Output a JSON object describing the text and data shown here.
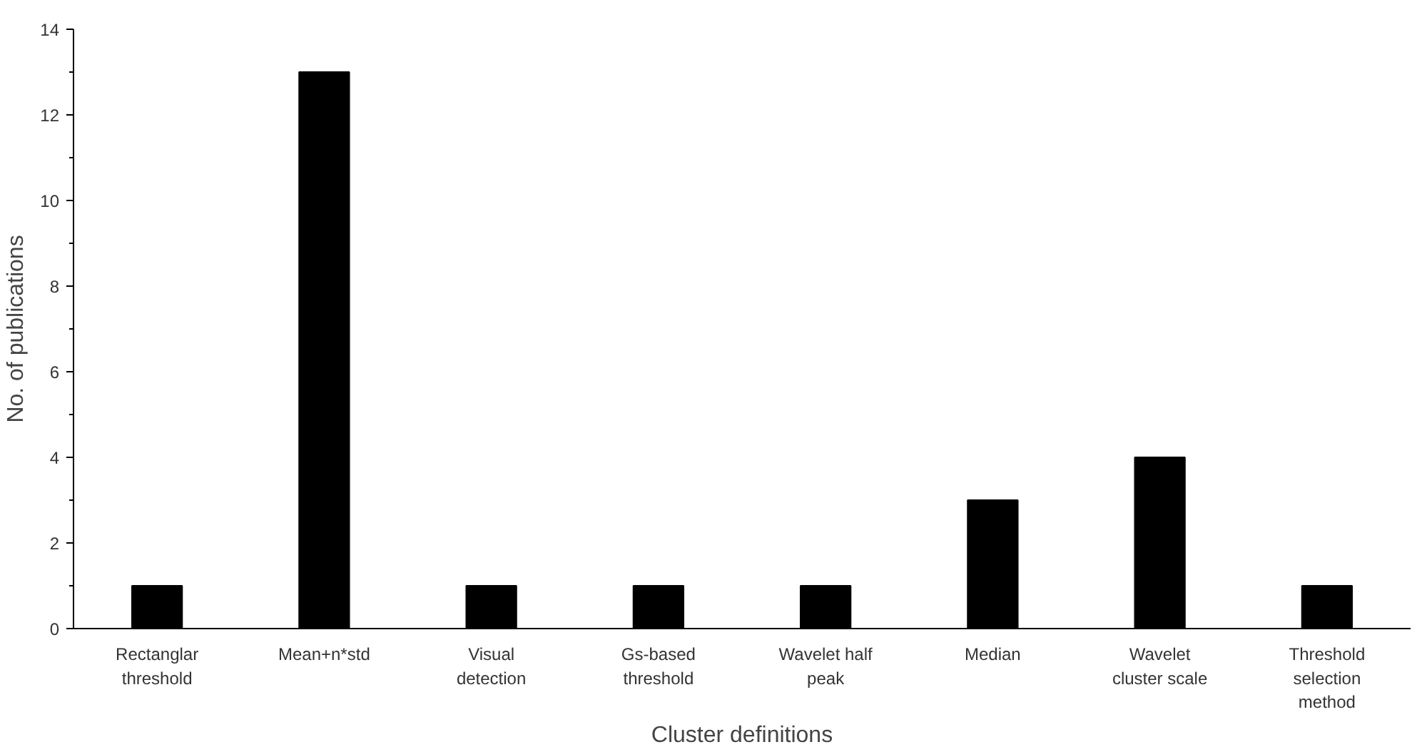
{
  "chart_data": {
    "type": "bar",
    "xlabel": "Cluster definitions",
    "ylabel": "No. of publications",
    "categories": [
      "Rectanglar threshold",
      "Mean+n*std",
      "Visual detection",
      "Gs-based threshold",
      "Wavelet half peak",
      "Median",
      "Wavelet cluster scale",
      "Threshold selection method"
    ],
    "values": [
      1,
      13,
      1,
      1,
      1,
      3,
      4,
      1
    ],
    "color": "#000000",
    "ylim": [
      0,
      14
    ],
    "yticks": [
      0,
      2,
      4,
      6,
      8,
      10,
      12,
      14
    ],
    "grid": false
  }
}
